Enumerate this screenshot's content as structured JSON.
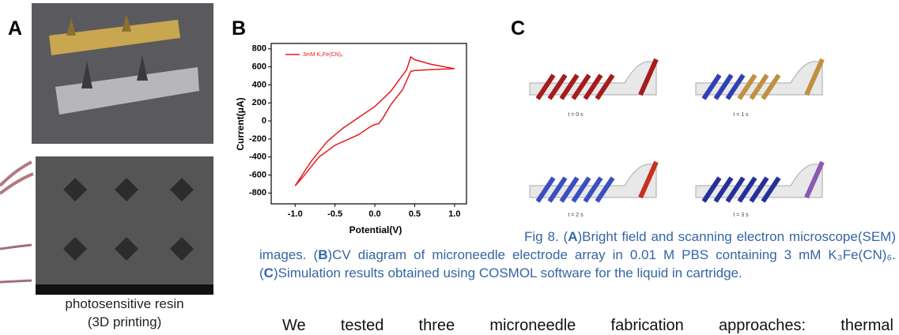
{
  "panel_labels": [
    "A",
    "B",
    "C"
  ],
  "photo_caption": [
    "photosensitive resin",
    "(3D printing)"
  ],
  "simulation_labels": [
    "t = 0 s",
    "t = 1 s",
    "t = 2 s",
    "t = 3 s"
  ],
  "chart_data": {
    "type": "line",
    "x": [
      -1.0,
      -0.8,
      -0.6,
      -0.4,
      -0.2,
      0.0,
      0.2,
      0.4,
      0.45,
      0.5,
      0.7,
      1.0,
      0.7,
      0.5,
      0.45,
      0.35,
      0.2,
      0.1,
      0.05,
      0.0,
      -0.05,
      -0.2,
      -0.4,
      -0.5,
      -0.7,
      -0.9,
      -1.0
    ],
    "series": [
      {
        "name": "3mM K₃Fe(CN)₆",
        "color": "#e8191c",
        "values": [
          -720,
          -450,
          -230,
          -80,
          40,
          160,
          330,
          570,
          710,
          680,
          630,
          580,
          570,
          560,
          550,
          350,
          180,
          30,
          -30,
          -40,
          -60,
          -150,
          -230,
          -270,
          -400,
          -620,
          -720
        ]
      }
    ],
    "xlabel": "Potential(V)",
    "ylabel": "Current(μA)",
    "xlim": [
      -1.3,
      1.15
    ],
    "ylim": [
      -920,
      860
    ],
    "xticks": [
      {
        "value": -1,
        "label": "-1.0"
      },
      {
        "value": -0.5,
        "label": "-0.5"
      },
      {
        "value": 0,
        "label": "0.0"
      },
      {
        "value": 0.5,
        "label": "0.5"
      },
      {
        "value": 1,
        "label": "1.0"
      }
    ],
    "yticks": [
      -800,
      -600,
      -400,
      -200,
      0,
      200,
      400,
      600,
      800
    ]
  },
  "caption": [
    "Fig 8. (",
    "A",
    ")Bright field and scanning electron microscope(SEM) images. (",
    "B",
    ")CV diagram of microneedle electrode array in 0.01 M PBS containing 3 mM K₃Fe(CN)₆. (",
    "C",
    ")Simulation results obtained using COSMOL software for the liquid in cartridge."
  ],
  "body": "We tested three microneedle fabrication approaches: thermal"
}
